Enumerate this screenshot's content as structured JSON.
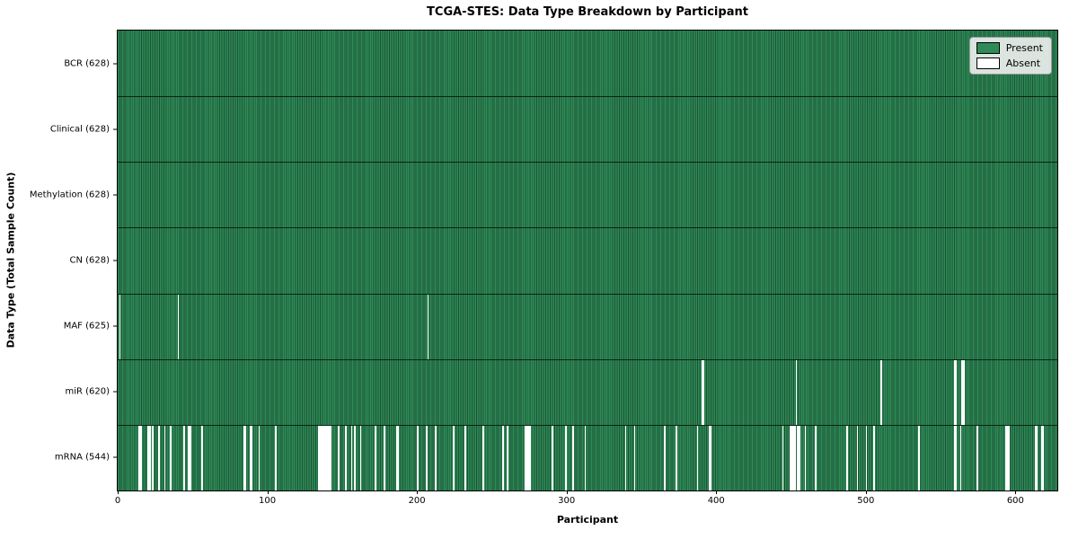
{
  "chart_data": {
    "type": "heatmap",
    "title": "TCGA-STES: Data Type Breakdown by Participant",
    "xlabel": "Participant",
    "ylabel": "Data Type (Total Sample Count)",
    "x_ticks": [
      0,
      100,
      200,
      300,
      400,
      500,
      600
    ],
    "x_range": [
      0,
      628
    ],
    "n_participants": 628,
    "grid": false,
    "legend": {
      "position": "upper right",
      "entries": [
        {
          "label": "Present",
          "color": "#2e8b57"
        },
        {
          "label": "Absent",
          "color": "#ffffff"
        }
      ]
    },
    "colors": {
      "present": "#2e8b57",
      "present_edge": "#1c5134",
      "absent": "#ffffff",
      "row_separator": "#0a140d",
      "legend_bg": "#efefef",
      "legend_border": "#9a9a9a"
    },
    "rows": [
      {
        "label": "BCR (628)",
        "data_type": "BCR",
        "count": 628,
        "absent": []
      },
      {
        "label": "Clinical (628)",
        "data_type": "Clinical",
        "count": 628,
        "absent": []
      },
      {
        "label": "Methylation (628)",
        "data_type": "Methylation",
        "count": 628,
        "absent": []
      },
      {
        "label": "CN (628)",
        "data_type": "CN",
        "count": 628,
        "absent": []
      },
      {
        "label": "MAF (625)",
        "data_type": "MAF",
        "count": 625,
        "absent": [
          1,
          40,
          207
        ]
      },
      {
        "label": "miR (620)",
        "data_type": "miR",
        "count": 620,
        "absent": [
          390,
          391,
          453,
          510,
          559,
          560,
          564,
          565
        ]
      },
      {
        "label": "mRNA (544)",
        "data_type": "mRNA",
        "count": 544,
        "absent": [
          14,
          15,
          20,
          21,
          23,
          27,
          31,
          35,
          44,
          47,
          48,
          56,
          84,
          85,
          88,
          89,
          94,
          105,
          134,
          135,
          136,
          137,
          138,
          139,
          140,
          141,
          142,
          147,
          152,
          156,
          158,
          162,
          172,
          178,
          186,
          187,
          200,
          206,
          212,
          224,
          232,
          244,
          257,
          260,
          272,
          273,
          274,
          275,
          290,
          299,
          304,
          312,
          339,
          345,
          365,
          373,
          387,
          395,
          396,
          444,
          449,
          450,
          451,
          452,
          454,
          455,
          459,
          466,
          487,
          494,
          500,
          505,
          535,
          559,
          560,
          563,
          574,
          593,
          594,
          595,
          613,
          614,
          617,
          618
        ]
      }
    ]
  }
}
